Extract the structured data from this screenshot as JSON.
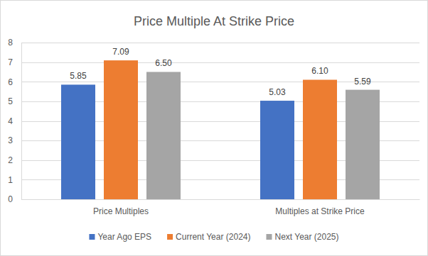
{
  "chart_data": {
    "type": "bar",
    "title": "Price Multiple At Strike Price",
    "categories": [
      "Price Multiples",
      "Multiples at Strike Price"
    ],
    "series": [
      {
        "name": "Year Ago EPS",
        "color": "#4472c4",
        "values": [
          5.85,
          5.03
        ],
        "value_labels": [
          "5.85",
          "5.03"
        ]
      },
      {
        "name": "Current Year (2024)",
        "color": "#ed7d31",
        "values": [
          7.09,
          6.1
        ],
        "value_labels": [
          "7.09",
          "6.10"
        ]
      },
      {
        "name": "Next Year (2025)",
        "color": "#a5a5a5",
        "values": [
          6.5,
          5.59
        ],
        "value_labels": [
          "6.50",
          "5.59"
        ]
      }
    ],
    "ylim": [
      0,
      8
    ],
    "yticks": [
      0,
      1,
      2,
      3,
      4,
      5,
      6,
      7,
      8
    ],
    "grid": true,
    "legend": "bottom",
    "data_labels": true
  }
}
